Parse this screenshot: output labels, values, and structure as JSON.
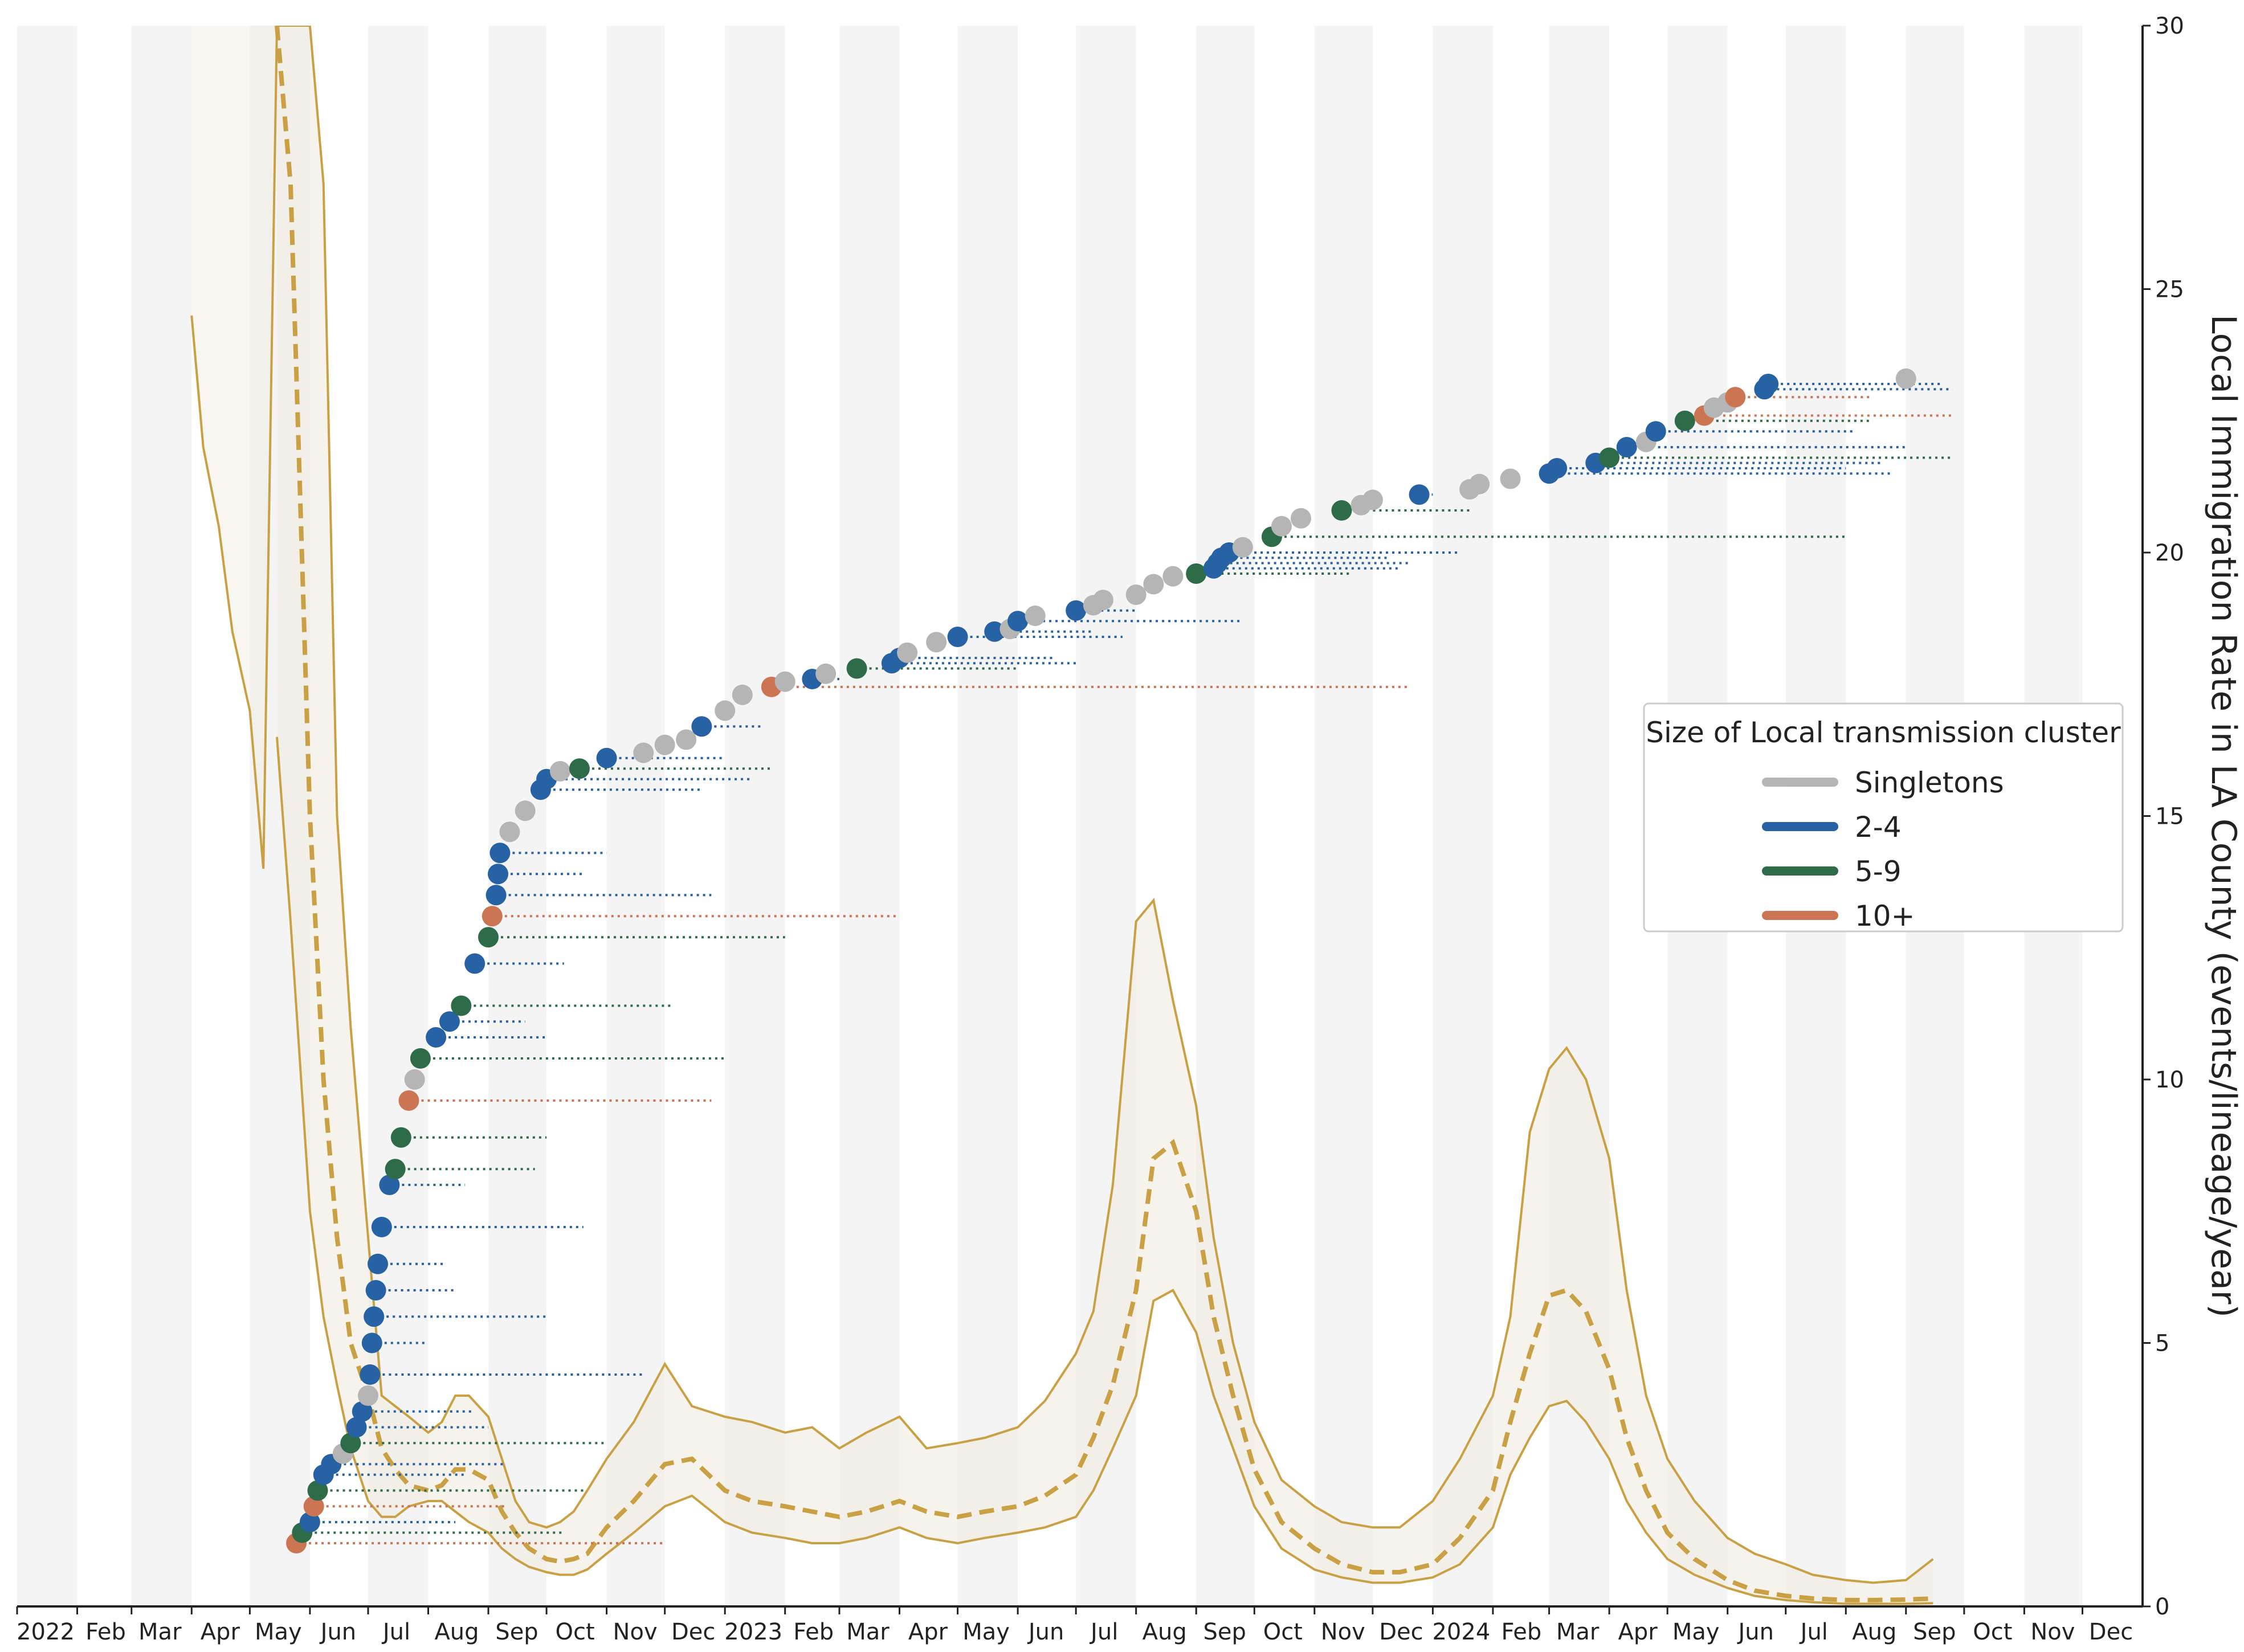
{
  "chart_data": {
    "type": "line",
    "title": "",
    "xlabel": "",
    "ylabel": "Local Immigration Rate in LA County (events/lineage/year)",
    "ylim": [
      0,
      30
    ],
    "yticks": [
      0,
      5,
      10,
      15,
      20,
      25,
      30
    ],
    "y_axis_side": "right",
    "x_range_months": [
      "2022-01",
      "2024-12"
    ],
    "x_tick_labels": [
      "2022",
      "Feb",
      "Mar",
      "Apr",
      "May",
      "Jun",
      "Jul",
      "Aug",
      "Sep",
      "Oct",
      "Nov",
      "Dec",
      "2023",
      "Feb",
      "Mar",
      "Apr",
      "May",
      "Jun",
      "Jul",
      "Aug",
      "Sep",
      "Oct",
      "Nov",
      "Dec",
      "2024",
      "Feb",
      "Mar",
      "Apr",
      "May",
      "Jun",
      "Jul",
      "Aug",
      "Sep",
      "Oct",
      "Nov",
      "Dec"
    ],
    "background": "alternating grey month bands",
    "grid": false,
    "colors": {
      "rate": "#C9A043",
      "band": "#EFEBDD",
      "month_band": "#F4F4F4",
      "singletons": "#B5B5B5",
      "c2_4": "#2762A4",
      "c5_9": "#2E6B48",
      "c10plus": "#CC7553"
    },
    "rate_series": {
      "x": [
        "2022-04-01",
        "2022-04-07",
        "2022-04-15",
        "2022-04-22",
        "2022-05-01",
        "2022-05-08",
        "2022-05-15",
        "2022-05-22",
        "2022-06-01",
        "2022-06-08",
        "2022-06-15",
        "2022-06-22",
        "2022-07-01",
        "2022-07-08",
        "2022-07-15",
        "2022-07-22",
        "2022-08-01",
        "2022-08-08",
        "2022-08-15",
        "2022-08-22",
        "2022-09-01",
        "2022-09-08",
        "2022-09-15",
        "2022-09-22",
        "2022-10-01",
        "2022-10-08",
        "2022-10-15",
        "2022-10-22",
        "2022-11-01",
        "2022-11-15",
        "2022-12-01",
        "2022-12-15",
        "2023-01-01",
        "2023-01-15",
        "2023-02-01",
        "2023-02-15",
        "2023-03-01",
        "2023-03-15",
        "2023-04-01",
        "2023-04-15",
        "2023-05-01",
        "2023-05-15",
        "2023-06-01",
        "2023-06-15",
        "2023-07-01",
        "2023-07-10",
        "2023-07-20",
        "2023-08-01",
        "2023-08-10",
        "2023-08-20",
        "2023-09-01",
        "2023-09-10",
        "2023-09-20",
        "2023-10-01",
        "2023-10-15",
        "2023-11-01",
        "2023-11-15",
        "2023-12-01",
        "2023-12-15",
        "2024-01-01",
        "2024-01-15",
        "2024-02-01",
        "2024-02-10",
        "2024-02-20",
        "2024-03-01",
        "2024-03-10",
        "2024-03-20",
        "2024-04-01",
        "2024-04-10",
        "2024-04-20",
        "2024-05-01",
        "2024-05-15",
        "2024-06-01",
        "2024-06-15",
        "2024-07-01",
        "2024-07-15",
        "2024-08-01",
        "2024-08-15",
        "2024-09-01",
        "2024-09-15"
      ],
      "median": [
        null,
        null,
        null,
        null,
        null,
        null,
        30,
        27,
        15,
        10,
        7,
        5,
        4,
        3,
        2.6,
        2.3,
        2.2,
        2.3,
        2.6,
        2.6,
        2.4,
        1.8,
        1.4,
        1.1,
        0.9,
        0.85,
        0.9,
        1.0,
        1.5,
        2.0,
        2.7,
        2.8,
        2.2,
        2.0,
        1.9,
        1.8,
        1.7,
        1.8,
        2.0,
        1.8,
        1.7,
        1.8,
        1.9,
        2.1,
        2.5,
        3.2,
        4.2,
        6.0,
        8.5,
        8.8,
        7.5,
        5.5,
        4.0,
        2.6,
        1.6,
        1.1,
        0.8,
        0.65,
        0.65,
        0.8,
        1.3,
        2.2,
        3.5,
        4.8,
        5.9,
        6.0,
        5.6,
        4.5,
        3.2,
        2.2,
        1.4,
        0.9,
        0.5,
        0.3,
        0.2,
        0.15,
        0.12,
        0.12,
        0.13,
        0.15
      ],
      "lower": [
        null,
        null,
        null,
        null,
        null,
        null,
        16.5,
        13,
        7.5,
        5.5,
        4.2,
        3.0,
        2.0,
        1.7,
        1.7,
        1.9,
        2.0,
        2.0,
        1.8,
        1.6,
        1.4,
        1.1,
        0.9,
        0.75,
        0.65,
        0.6,
        0.6,
        0.7,
        1.0,
        1.4,
        1.9,
        2.1,
        1.6,
        1.4,
        1.3,
        1.2,
        1.2,
        1.3,
        1.5,
        1.3,
        1.2,
        1.3,
        1.4,
        1.5,
        1.7,
        2.2,
        3.0,
        4.0,
        5.8,
        6.0,
        5.2,
        4.0,
        3.0,
        1.9,
        1.1,
        0.7,
        0.55,
        0.45,
        0.45,
        0.55,
        0.8,
        1.5,
        2.5,
        3.2,
        3.8,
        3.9,
        3.5,
        2.8,
        2.0,
        1.4,
        0.9,
        0.6,
        0.35,
        0.2,
        0.12,
        0.08,
        0.05,
        0.05,
        0.05,
        0.06
      ],
      "upper": [
        24.5,
        22,
        20.5,
        18.5,
        17,
        14,
        30,
        30,
        30,
        27,
        15,
        11,
        7,
        4,
        3.8,
        3.6,
        3.3,
        3.5,
        4.0,
        4.0,
        3.6,
        2.8,
        2.0,
        1.6,
        1.5,
        1.6,
        1.8,
        2.2,
        2.8,
        3.5,
        4.6,
        3.8,
        3.6,
        3.5,
        3.3,
        3.4,
        3.0,
        3.3,
        3.6,
        3.0,
        3.1,
        3.2,
        3.4,
        3.9,
        4.8,
        5.6,
        8.0,
        13.0,
        13.4,
        11.5,
        9.5,
        7.0,
        5.0,
        3.5,
        2.4,
        1.9,
        1.6,
        1.5,
        1.5,
        2.0,
        2.8,
        4.0,
        5.5,
        9.0,
        10.2,
        10.6,
        10.0,
        8.5,
        6.0,
        4.0,
        2.8,
        2.0,
        1.3,
        1.0,
        0.8,
        0.6,
        0.5,
        0.45,
        0.5,
        0.9
      ]
    },
    "series": [
      {
        "name": "Singletons"
      },
      {
        "name": "2-4"
      },
      {
        "name": "5-9"
      },
      {
        "name": "10+"
      }
    ],
    "legend": {
      "title": "Size of Local transmission cluster",
      "position": "center-right",
      "entries": [
        "Singletons",
        "2-4",
        "5-9",
        "10+"
      ]
    },
    "cluster_points": [
      {
        "x": "2022-05-25",
        "y": 1.2,
        "cat": "10+",
        "end": "2022-12-01"
      },
      {
        "x": "2022-05-28",
        "y": 1.4,
        "cat": "5-9",
        "end": "2022-10-10"
      },
      {
        "x": "2022-06-01",
        "y": 1.6,
        "cat": "2-4",
        "end": "2022-08-15"
      },
      {
        "x": "2022-06-03",
        "y": 1.9,
        "cat": "10+",
        "end": "2022-09-10"
      },
      {
        "x": "2022-06-05",
        "y": 2.2,
        "cat": "5-9",
        "end": "2022-10-20"
      },
      {
        "x": "2022-06-08",
        "y": 2.5,
        "cat": "2-4",
        "end": "2022-08-20"
      },
      {
        "x": "2022-06-12",
        "y": 2.7,
        "cat": "2-4",
        "end": "2022-09-10"
      },
      {
        "x": "2022-06-18",
        "y": 2.9,
        "cat": "Singletons",
        "end": null
      },
      {
        "x": "2022-06-22",
        "y": 3.1,
        "cat": "5-9",
        "end": "2022-11-01"
      },
      {
        "x": "2022-06-25",
        "y": 3.4,
        "cat": "2-4",
        "end": "2022-09-01"
      },
      {
        "x": "2022-06-28",
        "y": 3.7,
        "cat": "2-4",
        "end": "2022-08-25"
      },
      {
        "x": "2022-07-01",
        "y": 4.0,
        "cat": "Singletons",
        "end": null
      },
      {
        "x": "2022-07-02",
        "y": 4.4,
        "cat": "2-4",
        "end": "2022-11-20"
      },
      {
        "x": "2022-07-03",
        "y": 5.0,
        "cat": "2-4",
        "end": "2022-08-01"
      },
      {
        "x": "2022-07-04",
        "y": 5.5,
        "cat": "2-4",
        "end": "2022-10-01"
      },
      {
        "x": "2022-07-05",
        "y": 6.0,
        "cat": "2-4",
        "end": "2022-08-15"
      },
      {
        "x": "2022-07-06",
        "y": 6.5,
        "cat": "2-4",
        "end": "2022-08-10"
      },
      {
        "x": "2022-07-08",
        "y": 7.2,
        "cat": "2-4",
        "end": "2022-10-20"
      },
      {
        "x": "2022-07-12",
        "y": 8.0,
        "cat": "2-4",
        "end": "2022-08-20"
      },
      {
        "x": "2022-07-15",
        "y": 8.3,
        "cat": "5-9",
        "end": "2022-09-25"
      },
      {
        "x": "2022-07-18",
        "y": 8.9,
        "cat": "5-9",
        "end": "2022-10-01"
      },
      {
        "x": "2022-07-22",
        "y": 9.6,
        "cat": "10+",
        "end": "2022-12-25"
      },
      {
        "x": "2022-07-25",
        "y": 10.0,
        "cat": "Singletons",
        "end": null
      },
      {
        "x": "2022-07-28",
        "y": 10.4,
        "cat": "5-9",
        "end": "2023-01-01"
      },
      {
        "x": "2022-08-05",
        "y": 10.8,
        "cat": "2-4",
        "end": "2022-10-01"
      },
      {
        "x": "2022-08-12",
        "y": 11.1,
        "cat": "2-4",
        "end": "2022-09-20"
      },
      {
        "x": "2022-08-18",
        "y": 11.4,
        "cat": "5-9",
        "end": "2022-12-05"
      },
      {
        "x": "2022-08-25",
        "y": 12.2,
        "cat": "2-4",
        "end": "2022-10-10"
      },
      {
        "x": "2022-09-01",
        "y": 12.7,
        "cat": "5-9",
        "end": "2023-02-01"
      },
      {
        "x": "2022-09-03",
        "y": 13.1,
        "cat": "10+",
        "end": "2023-04-01"
      },
      {
        "x": "2022-09-05",
        "y": 13.5,
        "cat": "2-4",
        "end": "2022-12-25"
      },
      {
        "x": "2022-09-06",
        "y": 13.9,
        "cat": "2-4",
        "end": "2022-10-20"
      },
      {
        "x": "2022-09-07",
        "y": 14.3,
        "cat": "2-4",
        "end": "2022-11-01"
      },
      {
        "x": "2022-09-12",
        "y": 14.7,
        "cat": "Singletons",
        "end": null
      },
      {
        "x": "2022-09-20",
        "y": 15.1,
        "cat": "Singletons",
        "end": null
      },
      {
        "x": "2022-09-28",
        "y": 15.5,
        "cat": "2-4",
        "end": "2022-12-20"
      },
      {
        "x": "2022-10-01",
        "y": 15.7,
        "cat": "2-4",
        "end": "2023-01-15"
      },
      {
        "x": "2022-10-08",
        "y": 15.85,
        "cat": "Singletons",
        "end": null
      },
      {
        "x": "2022-10-18",
        "y": 15.9,
        "cat": "5-9",
        "end": "2023-01-25"
      },
      {
        "x": "2022-11-01",
        "y": 16.1,
        "cat": "2-4",
        "end": "2023-01-01"
      },
      {
        "x": "2022-11-20",
        "y": 16.2,
        "cat": "Singletons",
        "end": null
      },
      {
        "x": "2022-12-01",
        "y": 16.35,
        "cat": "Singletons",
        "end": null
      },
      {
        "x": "2022-12-12",
        "y": 16.45,
        "cat": "Singletons",
        "end": null
      },
      {
        "x": "2022-12-20",
        "y": 16.7,
        "cat": "2-4",
        "end": "2023-01-20"
      },
      {
        "x": "2023-01-01",
        "y": 17.0,
        "cat": "Singletons",
        "end": null
      },
      {
        "x": "2023-01-10",
        "y": 17.3,
        "cat": "Singletons",
        "end": null
      },
      {
        "x": "2023-01-25",
        "y": 17.45,
        "cat": "10+",
        "end": "2023-12-20"
      },
      {
        "x": "2023-02-01",
        "y": 17.55,
        "cat": "Singletons",
        "end": null
      },
      {
        "x": "2023-02-15",
        "y": 17.6,
        "cat": "2-4",
        "end": "2023-03-01"
      },
      {
        "x": "2023-02-22",
        "y": 17.7,
        "cat": "Singletons",
        "end": null
      },
      {
        "x": "2023-03-10",
        "y": 17.8,
        "cat": "5-9",
        "end": "2023-06-01"
      },
      {
        "x": "2023-03-28",
        "y": 17.9,
        "cat": "2-4",
        "end": "2023-07-01"
      },
      {
        "x": "2023-04-01",
        "y": 18.0,
        "cat": "2-4",
        "end": "2023-06-20"
      },
      {
        "x": "2023-04-05",
        "y": 18.1,
        "cat": "Singletons",
        "end": null
      },
      {
        "x": "2023-04-20",
        "y": 18.3,
        "cat": "Singletons",
        "end": null
      },
      {
        "x": "2023-05-01",
        "y": 18.4,
        "cat": "2-4",
        "end": "2023-07-25"
      },
      {
        "x": "2023-05-20",
        "y": 18.5,
        "cat": "2-4",
        "end": "2023-07-10"
      },
      {
        "x": "2023-05-28",
        "y": 18.55,
        "cat": "Singletons",
        "end": null
      },
      {
        "x": "2023-06-01",
        "y": 18.7,
        "cat": "2-4",
        "end": "2023-09-25"
      },
      {
        "x": "2023-06-10",
        "y": 18.8,
        "cat": "Singletons",
        "end": null
      },
      {
        "x": "2023-07-01",
        "y": 18.9,
        "cat": "2-4",
        "end": "2023-08-01"
      },
      {
        "x": "2023-07-10",
        "y": 19.0,
        "cat": "Singletons",
        "end": null
      },
      {
        "x": "2023-07-15",
        "y": 19.1,
        "cat": "Singletons",
        "end": null
      },
      {
        "x": "2023-08-01",
        "y": 19.2,
        "cat": "Singletons",
        "end": null
      },
      {
        "x": "2023-08-10",
        "y": 19.4,
        "cat": "Singletons",
        "end": null
      },
      {
        "x": "2023-08-20",
        "y": 19.55,
        "cat": "Singletons",
        "end": null
      },
      {
        "x": "2023-09-01",
        "y": 19.6,
        "cat": "5-9",
        "end": "2023-11-20"
      },
      {
        "x": "2023-09-10",
        "y": 19.7,
        "cat": "2-4",
        "end": "2023-12-15"
      },
      {
        "x": "2023-09-12",
        "y": 19.8,
        "cat": "2-4",
        "end": "2023-12-20"
      },
      {
        "x": "2023-09-14",
        "y": 19.9,
        "cat": "2-4",
        "end": "2023-12-10"
      },
      {
        "x": "2023-09-18",
        "y": 20.0,
        "cat": "2-4",
        "end": "2024-01-15"
      },
      {
        "x": "2023-09-25",
        "y": 20.1,
        "cat": "Singletons",
        "end": null
      },
      {
        "x": "2023-10-10",
        "y": 20.3,
        "cat": "5-9",
        "end": "2024-08-01"
      },
      {
        "x": "2023-10-15",
        "y": 20.5,
        "cat": "Singletons",
        "end": null
      },
      {
        "x": "2023-10-25",
        "y": 20.65,
        "cat": "Singletons",
        "end": null
      },
      {
        "x": "2023-11-15",
        "y": 20.8,
        "cat": "5-9",
        "end": "2024-01-20"
      },
      {
        "x": "2023-11-25",
        "y": 20.9,
        "cat": "Singletons",
        "end": null
      },
      {
        "x": "2023-12-01",
        "y": 21.0,
        "cat": "Singletons",
        "end": null
      },
      {
        "x": "2023-12-25",
        "y": 21.1,
        "cat": "2-4",
        "end": "2024-01-01"
      },
      {
        "x": "2024-01-20",
        "y": 21.2,
        "cat": "Singletons",
        "end": null
      },
      {
        "x": "2024-01-25",
        "y": 21.3,
        "cat": "Singletons",
        "end": null
      },
      {
        "x": "2024-02-10",
        "y": 21.4,
        "cat": "Singletons",
        "end": null
      },
      {
        "x": "2024-03-01",
        "y": 21.5,
        "cat": "2-4",
        "end": "2024-08-25"
      },
      {
        "x": "2024-03-05",
        "y": 21.6,
        "cat": "2-4",
        "end": "2024-08-01"
      },
      {
        "x": "2024-03-25",
        "y": 21.7,
        "cat": "2-4",
        "end": "2024-08-20"
      },
      {
        "x": "2024-04-01",
        "y": 21.8,
        "cat": "5-9",
        "end": "2024-09-25"
      },
      {
        "x": "2024-04-10",
        "y": 22.0,
        "cat": "2-4",
        "end": "2024-09-01"
      },
      {
        "x": "2024-04-20",
        "y": 22.1,
        "cat": "Singletons",
        "end": null
      },
      {
        "x": "2024-04-25",
        "y": 22.3,
        "cat": "2-4",
        "end": "2024-08-05"
      },
      {
        "x": "2024-05-10",
        "y": 22.5,
        "cat": "5-9",
        "end": "2024-08-15"
      },
      {
        "x": "2024-05-20",
        "y": 22.6,
        "cat": "10+",
        "end": "2024-09-25"
      },
      {
        "x": "2024-05-25",
        "y": 22.75,
        "cat": "Singletons",
        "end": null
      },
      {
        "x": "2024-06-01",
        "y": 22.85,
        "cat": "Singletons",
        "end": null
      },
      {
        "x": "2024-06-05",
        "y": 22.95,
        "cat": "10+",
        "end": "2024-08-15"
      },
      {
        "x": "2024-06-20",
        "y": 23.1,
        "cat": "2-4",
        "end": "2024-09-25"
      },
      {
        "x": "2024-06-22",
        "y": 23.2,
        "cat": "2-4",
        "end": "2024-09-20"
      },
      {
        "x": "2024-09-01",
        "y": 23.3,
        "cat": "Singletons",
        "end": null
      }
    ]
  }
}
